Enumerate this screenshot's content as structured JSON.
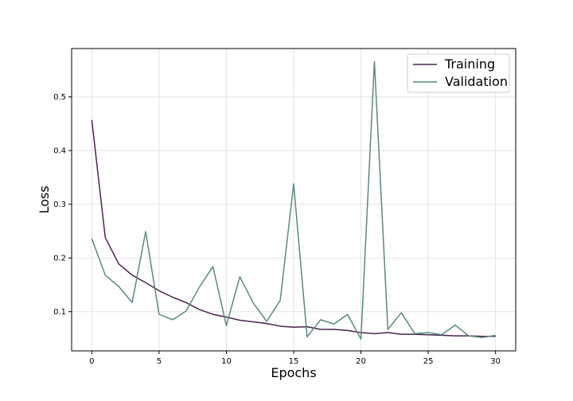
{
  "chart_data": {
    "type": "line",
    "title": "",
    "xlabel": "Epochs",
    "ylabel": "Loss",
    "xlim": [
      -1.5,
      31.5
    ],
    "ylim": [
      0.027,
      0.59
    ],
    "xticks": [
      0,
      5,
      10,
      15,
      20,
      25,
      30
    ],
    "yticks": [
      0.1,
      0.2,
      0.3,
      0.4,
      0.5
    ],
    "xtick_labels": [
      "0",
      "5",
      "10",
      "15",
      "20",
      "25",
      "30"
    ],
    "ytick_labels": [
      "0.1",
      "0.2",
      "0.3",
      "0.4",
      "0.5"
    ],
    "grid": true,
    "legend_position": "top-right",
    "x": [
      0,
      1,
      2,
      3,
      4,
      5,
      6,
      7,
      8,
      9,
      10,
      11,
      12,
      13,
      14,
      15,
      16,
      17,
      18,
      19,
      20,
      21,
      22,
      23,
      24,
      25,
      26,
      27,
      28,
      29,
      30
    ],
    "series": [
      {
        "name": "Training",
        "color": "#4b2250",
        "values": [
          0.457,
          0.238,
          0.189,
          0.168,
          0.154,
          0.139,
          0.127,
          0.117,
          0.104,
          0.095,
          0.09,
          0.084,
          0.081,
          0.078,
          0.073,
          0.071,
          0.072,
          0.067,
          0.067,
          0.065,
          0.061,
          0.059,
          0.061,
          0.058,
          0.058,
          0.057,
          0.056,
          0.055,
          0.055,
          0.054,
          0.054
        ]
      },
      {
        "name": "Validation",
        "color": "#5a8a7c",
        "values": [
          0.236,
          0.168,
          0.147,
          0.117,
          0.249,
          0.095,
          0.085,
          0.101,
          0.146,
          0.184,
          0.074,
          0.165,
          0.116,
          0.082,
          0.121,
          0.338,
          0.053,
          0.085,
          0.077,
          0.095,
          0.049,
          0.566,
          0.067,
          0.098,
          0.059,
          0.061,
          0.057,
          0.075,
          0.055,
          0.052,
          0.056
        ]
      }
    ]
  }
}
